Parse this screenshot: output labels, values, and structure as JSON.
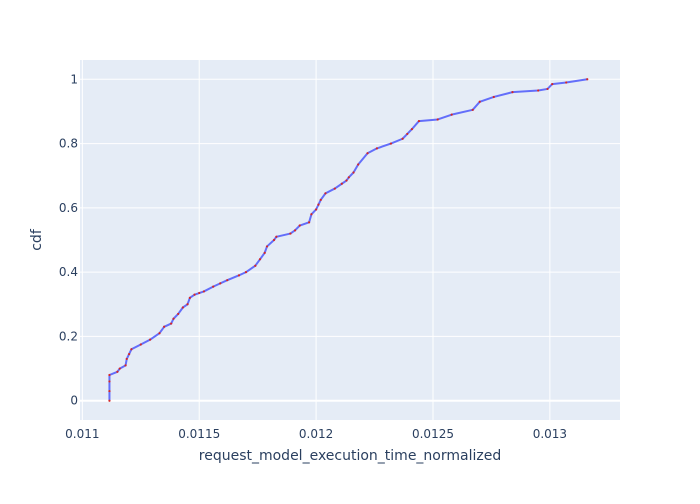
{
  "chart_data": {
    "type": "line",
    "title": "",
    "xlabel": "request_model_execution_time_normalized",
    "ylabel": "cdf",
    "xlim": [
      0.01099,
      0.0133
    ],
    "ylim": [
      -0.06,
      1.06
    ],
    "grid": true,
    "legend": "none",
    "colors": {
      "plot_bg": "#e5ecf6",
      "grid": "#ffffff",
      "line": "#636efa",
      "markers": "#d62728",
      "text": "#2a3f5f"
    },
    "x_ticks": [
      {
        "value": 0.011,
        "label": "0.011"
      },
      {
        "value": 0.0115,
        "label": "0.0115"
      },
      {
        "value": 0.012,
        "label": "0.012"
      },
      {
        "value": 0.0125,
        "label": "0.0125"
      },
      {
        "value": 0.013,
        "label": "0.013"
      }
    ],
    "y_ticks": [
      {
        "value": 0,
        "label": "0"
      },
      {
        "value": 0.2,
        "label": "0.2"
      },
      {
        "value": 0.4,
        "label": "0.4"
      },
      {
        "value": 0.6,
        "label": "0.6"
      },
      {
        "value": 0.8,
        "label": "0.8"
      },
      {
        "value": 1,
        "label": "1"
      }
    ],
    "series": [
      {
        "x": [
          0.011116,
          0.011116,
          0.011116,
          0.011116,
          0.01115,
          0.01116,
          0.011185,
          0.01119,
          0.0112,
          0.01121,
          0.01125,
          0.01129,
          0.01133,
          0.01135,
          0.01138,
          0.01139,
          0.01141,
          0.01143,
          0.01145,
          0.01146,
          0.01148,
          0.0115,
          0.01152,
          0.01156,
          0.01159,
          0.01162,
          0.01167,
          0.0117,
          0.01174,
          0.01176,
          0.01178,
          0.01179,
          0.01182,
          0.01183,
          0.01189,
          0.01191,
          0.01193,
          0.01197,
          0.01198,
          0.012,
          0.01201,
          0.01202,
          0.01204,
          0.01208,
          0.01211,
          0.01213,
          0.01214,
          0.01216,
          0.01218,
          0.01222,
          0.01226,
          0.01232,
          0.01237,
          0.01239,
          0.01241,
          0.01244,
          0.01252,
          0.01258,
          0.01267,
          0.0127,
          0.01276,
          0.01284,
          0.01295,
          0.01299,
          0.01301,
          0.01307,
          0.01316
        ],
        "y": [
          0.0,
          0.03,
          0.06,
          0.08,
          0.09,
          0.1,
          0.11,
          0.13,
          0.145,
          0.16,
          0.175,
          0.19,
          0.21,
          0.23,
          0.24,
          0.255,
          0.27,
          0.29,
          0.3,
          0.32,
          0.33,
          0.335,
          0.34,
          0.355,
          0.365,
          0.375,
          0.39,
          0.4,
          0.42,
          0.44,
          0.46,
          0.48,
          0.5,
          0.51,
          0.52,
          0.53,
          0.545,
          0.555,
          0.58,
          0.595,
          0.61,
          0.625,
          0.645,
          0.66,
          0.675,
          0.685,
          0.695,
          0.71,
          0.735,
          0.77,
          0.785,
          0.8,
          0.815,
          0.83,
          0.845,
          0.87,
          0.875,
          0.89,
          0.905,
          0.93,
          0.945,
          0.96,
          0.965,
          0.97,
          0.985,
          0.99,
          1.0
        ]
      }
    ]
  }
}
